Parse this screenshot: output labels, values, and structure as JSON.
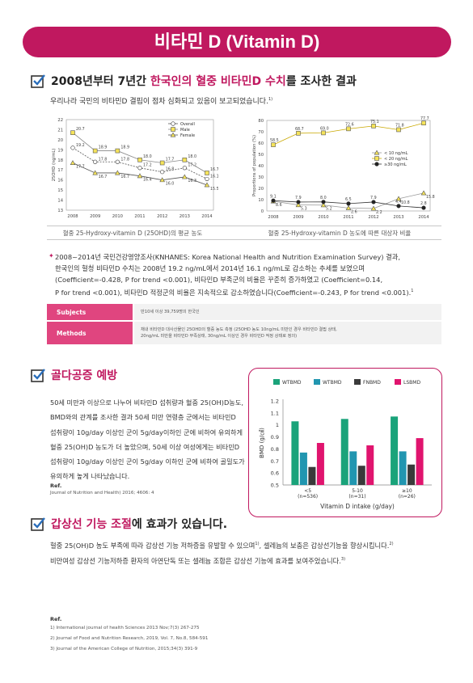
{
  "title": "비타민 D (Vitamin D)",
  "section1": {
    "heading_pre": "2008년부터 7년간 ",
    "heading_highlight": "한국인의 혈중 비타민D 수치",
    "heading_post": "를 조사한 결과",
    "intro": "우리나라 국민의 비타민D 결핍이 점차 심화되고 있음이 보고되었습니다.",
    "intro_ref": "1)"
  },
  "colors": {
    "accent": "#c0185f",
    "pink_label": "#e0457f",
    "yellow": "#f5e35a"
  },
  "chart_data": [
    {
      "type": "line",
      "ylabel": "25OHD (ng/mL)",
      "ylim": [
        13,
        22
      ],
      "yticks": [
        "13",
        "14",
        "15",
        "16",
        "17",
        "18",
        "19",
        "20",
        "21",
        "22"
      ],
      "x": [
        "2008",
        "2009",
        "2010",
        "2011",
        "2012",
        "2013",
        "2014"
      ],
      "series": [
        {
          "name": "Overall",
          "marker": "circle",
          "values": [
            19.2,
            17.8,
            17.8,
            17.2,
            16.8,
            17.2,
            16.1
          ],
          "labels": [
            "19.2",
            "17.8",
            "17.8",
            "17.2",
            "16.8",
            "17.2",
            "16.1"
          ]
        },
        {
          "name": "Male",
          "marker": "square",
          "values": [
            20.7,
            18.9,
            18.9,
            18.0,
            17.7,
            18.0,
            16.7
          ],
          "labels": [
            "20.7",
            "18.9",
            "18.9",
            "18.0",
            "17.7",
            "18.0",
            "16.7"
          ]
        },
        {
          "name": "Female",
          "marker": "triangle",
          "values": [
            17.7,
            16.7,
            16.7,
            16.4,
            16.0,
            16.3,
            15.5
          ],
          "labels": [
            "17.7",
            "16.7",
            "16.7",
            "16.4",
            "16.0",
            "16.3",
            "15.5"
          ]
        }
      ],
      "legend": "top-right",
      "caption": "혈중 25-Hydroxy-vitamin D (25OHD)의 평균 농도"
    },
    {
      "type": "line",
      "ylabel": "Proportions of population (%)",
      "ylim": [
        0,
        80
      ],
      "yticks": [
        "0",
        "10",
        "20",
        "30",
        "40",
        "50",
        "60",
        "70",
        "80"
      ],
      "x": [
        "2008",
        "2009",
        "2010",
        "2011",
        "2012",
        "2013",
        "2014"
      ],
      "series": [
        {
          "name": "< 10 ng/mL",
          "marker": "triangle",
          "values": [
            8.6,
            5.3,
            5.2,
            2.6,
            2.2,
            10.8,
            15.8
          ],
          "labels": [
            "8.6",
            "5.3",
            "5.2",
            "2.6",
            "2.2",
            "10.8",
            "15.8"
          ]
        },
        {
          "name": "< 20 ng/mL",
          "marker": "square",
          "values": [
            58.5,
            68.7,
            69.0,
            72.6,
            75.1,
            71.8,
            77.7
          ],
          "labels": [
            "58.5",
            "68.7",
            "69.0",
            "72.6",
            "75.1",
            "71.8",
            "77.7"
          ]
        },
        {
          "name": "≥30 ng/mL",
          "marker": "circle",
          "values": [
            9.1,
            7.9,
            8.0,
            6.5,
            7.9,
            4.4,
            2.8
          ],
          "labels": [
            "9.1",
            "7.9",
            "8.0",
            "6.5",
            "7.9",
            "4.4",
            "2.8"
          ]
        }
      ],
      "legend": "center-right",
      "caption": "혈중 25-Hydroxy-vitamin D 농도에 따른 대상자 비율"
    },
    {
      "type": "bar",
      "ylabel": "BMD (g/㎠)",
      "xlabel": "Vitamin D intake (g/day)",
      "ylim": [
        0.5,
        1.2
      ],
      "yticks": [
        "0.5",
        "0.6",
        "0.7",
        "0.8",
        "0.9",
        "1",
        "1.1",
        "1.2"
      ],
      "categories": [
        "<5\n(n=536)",
        "5-10\n(n=31)",
        "≥10\n(n=26)"
      ],
      "category_top": [
        "<5",
        "5-10",
        "≥10"
      ],
      "category_bottom": [
        "(n=536)",
        "(n=31)",
        "(n=26)"
      ],
      "series": [
        {
          "name": "WTBMD",
          "color": "#1aa37a",
          "values": [
            1.03,
            1.05,
            1.07
          ]
        },
        {
          "name": "WTBMD",
          "color": "#2196b0",
          "values": [
            0.77,
            0.78,
            0.78
          ]
        },
        {
          "name": "FNBMD",
          "color": "#3a3a3a",
          "values": [
            0.65,
            0.66,
            0.67
          ]
        },
        {
          "name": "LSBMD",
          "color": "#e0146e",
          "values": [
            0.85,
            0.83,
            0.89
          ]
        }
      ],
      "legend": "top"
    }
  ],
  "findings": {
    "lines": [
      "2008~2014년 국민건강영양조사(KNHANES: Korea National Health and Nutrition Examination Survey) 결과,",
      "한국인의 혈청 비타민D 수치는 2008년 19.2 ng/mL에서 2014년 16.1 ng/mL로 감소하는 추세를 보였으며",
      "(Coefficient=-0.428, P for trend <0.001), 비타민D 부족군의 비율은 꾸준히 증가하였고 (Coefficient=0.14,",
      "P for trend <0.001), 비타민D 적정군의 비율은 지속적으로 감소하였습니다(Coefficient=-0.243, P for trend <0.001)."
    ],
    "ref": "1"
  },
  "table": {
    "subjects_label": "Subjects",
    "subjects_value": "만10세 이상 39,759명의 한국인",
    "methods_label": "Methods",
    "methods_value": [
      "채내 비타민D 대사산물인 25OHD의 혈중 농도 측정 (25OHD 농도 10ng/mL 미만인 경우 비타민D 결핍 상태,",
      "20ng/mL 미만을 비타민D 부족상태, 30ng/mL 이상인 경우 비타민D 적정 상태로 정의)"
    ]
  },
  "section2": {
    "heading": "골다공증 예방",
    "body": [
      "50세 미만과 이상으로 나누어 비타민D 섭취량과 혈중 25(OH)D농도,",
      "BMD와의 관계를 조사한 결과 50세 미만 연령층 군에서는 비타민D",
      "섭취량이 10g/day 이상인 군이 5g/day이하인 군에 비하여 유의하게",
      "혈중 25(OH)D 농도가 더 높았으며, 50세 이상 여성에게는 비타민D",
      "섭취량이 10g/day 이상인 군이 5g/day 이하인 군에 비하여 골밀도가",
      "유의하게 높게 나타났습니다."
    ],
    "ref_title": "Ref.",
    "ref": "Journal of Nutrition and Health) 2016; 4606: 4"
  },
  "section3": {
    "heading_highlight": "갑상선 기능 조절",
    "heading_post": "에 효과가 있습니다.",
    "line1": "혈중 25(OH)D 농도 부족에 따라 갑상선 기능 저하증을 유발할 수 있으며",
    "line1_ref1": "1)",
    "line1_b": ", 셀레늄의 보충은 갑상선기능을 향상시킵니다.",
    "line1_ref2": "2)",
    "line2": "비만여성 갑상선 기능저하증 환자의 아연단독 또는 셀레늄 조합은 갑상선 기능에 효과를 보여주었습니다.",
    "line2_ref": "3)",
    "ref_title": "Ref.",
    "refs": [
      "1) International journal of health Sciences 2013 Nov;7(3) 267-275",
      "2) Journal of Food and Nutrition Research, 2019, Vol. 7, No.8, 584-591",
      "3) Journal of the American College of Nutrition, 2015;34(3) 391-9"
    ]
  }
}
